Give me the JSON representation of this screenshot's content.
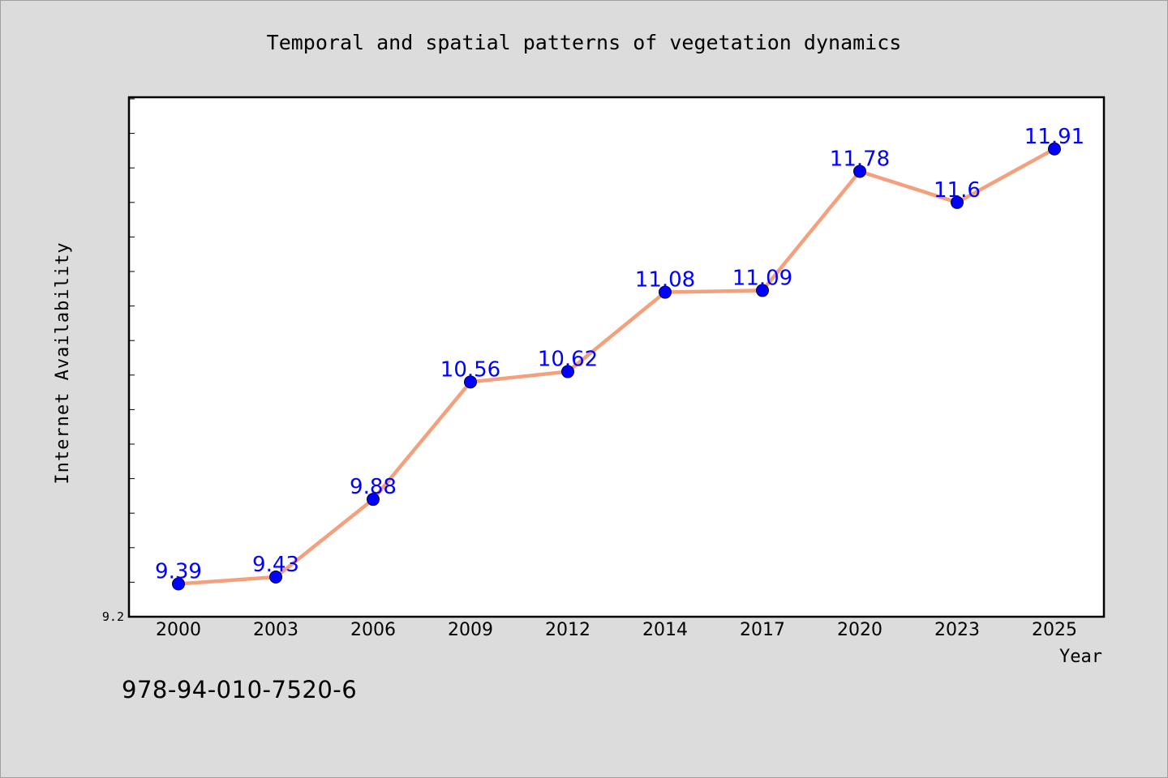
{
  "chart_data": {
    "type": "line",
    "title": "Temporal and spatial patterns of vegetation dynamics",
    "xlabel": "Year",
    "ylabel": "Internet Availability",
    "categories": [
      "2000",
      "2003",
      "2006",
      "2009",
      "2012",
      "2014",
      "2017",
      "2020",
      "2023",
      "2025"
    ],
    "series": [
      {
        "values": [
          9.39,
          9.43,
          9.88,
          10.56,
          10.62,
          11.08,
          11.09,
          11.78,
          11.6,
          11.91
        ]
      }
    ],
    "y_tick_labels": [
      "9.2"
    ],
    "ylim": [
      9.2,
      12.2
    ],
    "grid": false,
    "data_labels": true,
    "colors": {
      "line": "#f4a07c",
      "marker": "#0000ff",
      "label": "#0000ff",
      "background": "#dcdcdc",
      "plot_background": "#ffffff"
    }
  },
  "footer": {
    "code": "978-94-010-7520-6"
  }
}
